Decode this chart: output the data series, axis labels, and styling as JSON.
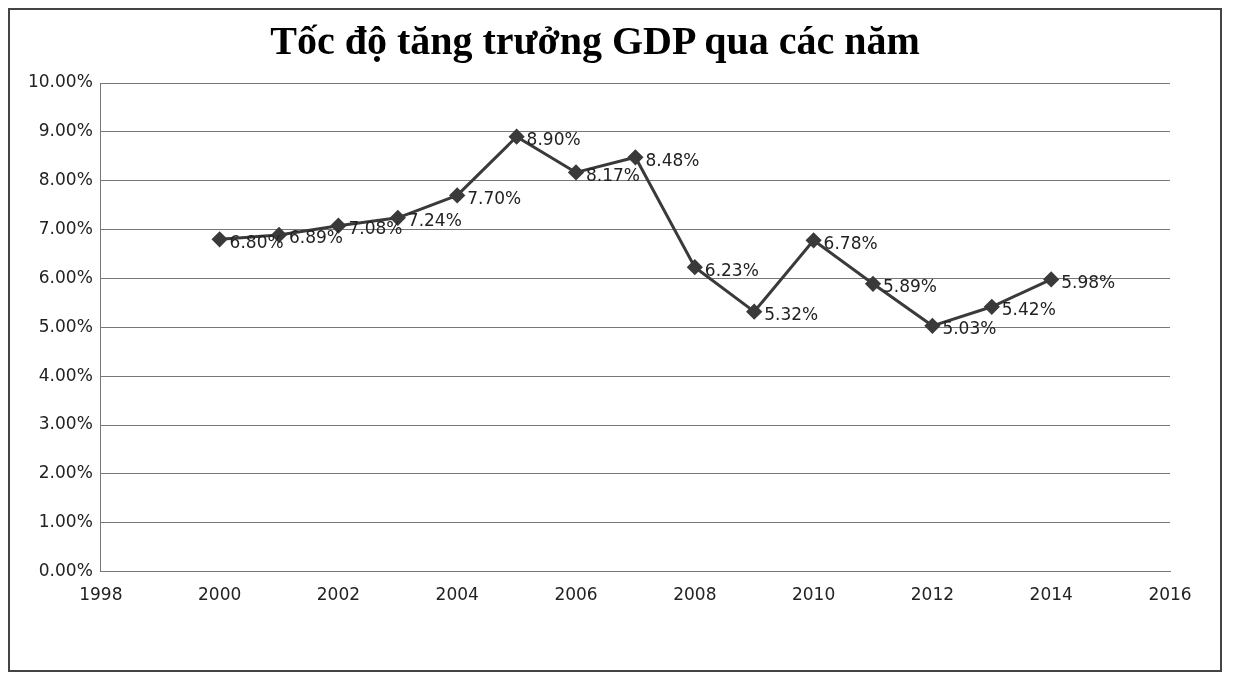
{
  "chart_data": {
    "type": "line",
    "title": "Tốc độ tăng trưởng GDP qua các năm",
    "x": [
      2000,
      2001,
      2002,
      2003,
      2004,
      2005,
      2006,
      2007,
      2008,
      2009,
      2010,
      2011,
      2012,
      2013,
      2014
    ],
    "series": [
      {
        "color": "#3a3a3a",
        "values": [
          6.8,
          6.89,
          7.08,
          7.24,
          7.7,
          8.9,
          8.17,
          8.48,
          6.23,
          5.32,
          6.78,
          5.89,
          5.03,
          5.42,
          5.98
        ],
        "value_labels": [
          "6.80%",
          "6.89%",
          "7.08%",
          "7.24%",
          "7.70%",
          "8.90%",
          "8.17%",
          "8.48%",
          "6.23%",
          "5.32%",
          "6.78%",
          "5.89%",
          "5.03%",
          "5.42%",
          "5.98%"
        ]
      }
    ],
    "xlim": [
      1998,
      2016
    ],
    "xticks": [
      1998,
      2000,
      2002,
      2004,
      2006,
      2008,
      2010,
      2012,
      2014,
      2016
    ],
    "ylim": [
      0,
      10
    ],
    "yticks": [
      {
        "value": 0,
        "label": "0.00%"
      },
      {
        "value": 1,
        "label": "1.00%"
      },
      {
        "value": 2,
        "label": "2.00%"
      },
      {
        "value": 3,
        "label": "3.00%"
      },
      {
        "value": 4,
        "label": "4.00%"
      },
      {
        "value": 5,
        "label": "5.00%"
      },
      {
        "value": 6,
        "label": "6.00%"
      },
      {
        "value": 7,
        "label": "7.00%"
      },
      {
        "value": 8,
        "label": "8.00%"
      },
      {
        "value": 9,
        "label": "9.00%"
      },
      {
        "value": 10,
        "label": "10.00%"
      }
    ],
    "grid": "y",
    "legend": false,
    "marker": "diamond",
    "line_style": "solid"
  }
}
